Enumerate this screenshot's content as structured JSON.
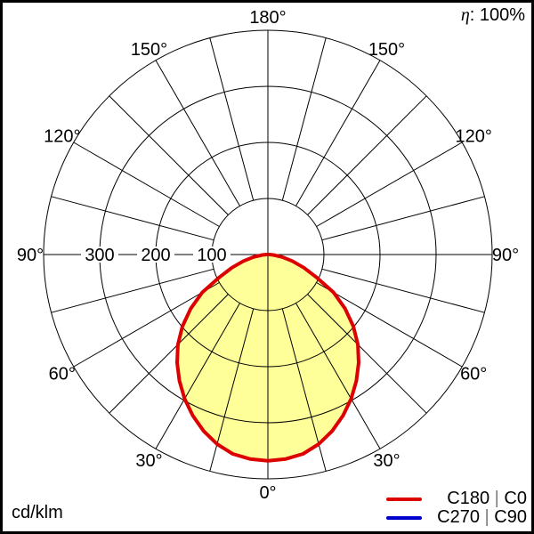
{
  "header": {
    "efficiency_symbol": "η",
    "efficiency_rest": ": 100%",
    "efficiency_full": "η: 100%"
  },
  "footer": {
    "unit_label": "cd/klm"
  },
  "legend": [
    {
      "plane_a": "C180",
      "separator": "|",
      "plane_b": "C0",
      "color": "#dd0000"
    },
    {
      "plane_a": "C270",
      "separator": "|",
      "plane_b": "C90",
      "color": "#0000cc"
    }
  ],
  "chart_data": {
    "type": "line",
    "subtype": "polar-photometric-distribution",
    "title": "",
    "unit": "cd/klm",
    "efficiency": "100%",
    "fill_color": "#ffff99",
    "grid_color": "#000000",
    "angular_axis": {
      "grid_step_deg": 15,
      "label_step_deg": 30,
      "labels": [
        {
          "deg": 0,
          "label": "0°"
        },
        {
          "deg": 30,
          "label": "30°"
        },
        {
          "deg": 60,
          "label": "60°"
        },
        {
          "deg": 90,
          "label": "90°"
        },
        {
          "deg": 120,
          "label": "120°"
        },
        {
          "deg": 150,
          "label": "150°"
        },
        {
          "deg": 180,
          "label": "180°"
        }
      ]
    },
    "radial_axis": {
      "ticks": [
        {
          "value": 100,
          "label": "100"
        },
        {
          "value": 200,
          "label": "200"
        },
        {
          "value": 300,
          "label": "300"
        }
      ],
      "max": 400,
      "inner_blank_radius": 100
    },
    "series": [
      {
        "name": "C180 | C0",
        "color": "#dd0000",
        "visible": true,
        "gamma_deg": [
          -90,
          -85,
          -80,
          -75,
          -70,
          -65,
          -60,
          -55,
          -50,
          -45,
          -40,
          -35,
          -30,
          -25,
          -20,
          -15,
          -10,
          -5,
          0,
          5,
          10,
          15,
          20,
          25,
          30,
          35,
          40,
          45,
          50,
          55,
          60,
          65,
          70,
          75,
          80,
          85,
          90
        ],
        "intensity_cd_klm": [
          3,
          10,
          26,
          45,
          68,
          95,
          135,
          168,
          199,
          227,
          252,
          275,
          297,
          317,
          335,
          350,
          361,
          366,
          368,
          366,
          361,
          350,
          335,
          317,
          297,
          275,
          252,
          227,
          199,
          168,
          135,
          95,
          68,
          45,
          26,
          10,
          3
        ]
      },
      {
        "name": "C270 | C90",
        "color": "#0000cc",
        "visible": false,
        "gamma_deg": [
          -90,
          -85,
          -80,
          -75,
          -70,
          -65,
          -60,
          -55,
          -50,
          -45,
          -40,
          -35,
          -30,
          -25,
          -20,
          -15,
          -10,
          -5,
          0,
          5,
          10,
          15,
          20,
          25,
          30,
          35,
          40,
          45,
          50,
          55,
          60,
          65,
          70,
          75,
          80,
          85,
          90
        ],
        "intensity_cd_klm": [
          3,
          10,
          26,
          45,
          68,
          95,
          135,
          168,
          199,
          227,
          252,
          275,
          297,
          317,
          335,
          350,
          361,
          366,
          368,
          366,
          361,
          350,
          335,
          317,
          297,
          275,
          252,
          227,
          199,
          168,
          135,
          95,
          68,
          45,
          26,
          10,
          3
        ]
      }
    ]
  }
}
